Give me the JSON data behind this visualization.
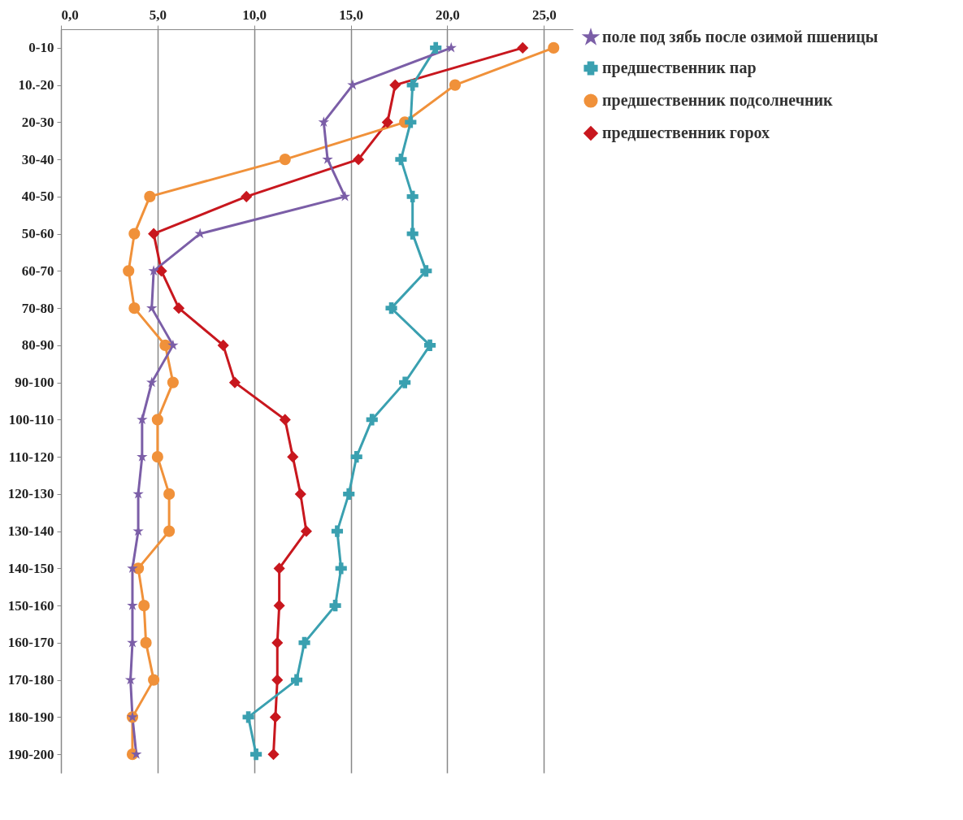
{
  "chart_data": {
    "type": "line",
    "orientation": "horizontal",
    "categories": [
      "0-10",
      "10.-20",
      "20-30",
      "30-40",
      "40-50",
      "50-60",
      "60-70",
      "70-80",
      "80-90",
      "90-100",
      "100-110",
      "110-120",
      "120-130",
      "130-140",
      "140-150",
      "150-160",
      "160-170",
      "170-180",
      "180-190",
      "190-200"
    ],
    "series": [
      {
        "name": "поле под зябь после озимой пшеницы",
        "color": "#7b5ea7",
        "marker": "star",
        "values": [
          20.2,
          15.1,
          13.6,
          13.8,
          14.7,
          7.2,
          4.8,
          4.7,
          5.8,
          4.7,
          4.2,
          4.2,
          4.0,
          4.0,
          3.7,
          3.7,
          3.7,
          3.6,
          3.7,
          3.9
        ]
      },
      {
        "name": "предшественник пар",
        "color": "#3aa0b0",
        "marker": "cross",
        "values": [
          19.4,
          18.2,
          18.1,
          17.6,
          18.2,
          18.2,
          18.9,
          17.1,
          19.1,
          17.8,
          16.1,
          15.3,
          14.9,
          14.3,
          14.5,
          14.2,
          12.6,
          12.2,
          9.7,
          10.1
        ]
      },
      {
        "name": "предшественник подсолнечник",
        "color": "#f0913a",
        "marker": "circle",
        "values": [
          25.5,
          20.4,
          17.8,
          11.6,
          4.6,
          3.8,
          3.5,
          3.8,
          5.4,
          5.8,
          5.0,
          5.0,
          5.6,
          5.6,
          4.0,
          4.3,
          4.4,
          4.8,
          3.7,
          3.7
        ]
      },
      {
        "name": "предшественник горох",
        "color": "#c8171e",
        "marker": "diamond",
        "values": [
          23.9,
          17.3,
          16.9,
          15.4,
          9.6,
          4.8,
          5.2,
          6.1,
          8.4,
          9.0,
          11.6,
          12.0,
          12.4,
          12.7,
          11.3,
          11.3,
          11.2,
          11.2,
          11.1,
          11.0
        ]
      }
    ],
    "xlim": [
      0,
      26.5
    ],
    "xticks": [
      {
        "value": 0,
        "label": "0,0"
      },
      {
        "value": 5,
        "label": "5,0"
      },
      {
        "value": 10,
        "label": "10,0"
      },
      {
        "value": 15,
        "label": "15,0"
      },
      {
        "value": 20,
        "label": "20,0"
      },
      {
        "value": 25,
        "label": "25,0"
      }
    ],
    "grid": "x",
    "legend": "right"
  }
}
